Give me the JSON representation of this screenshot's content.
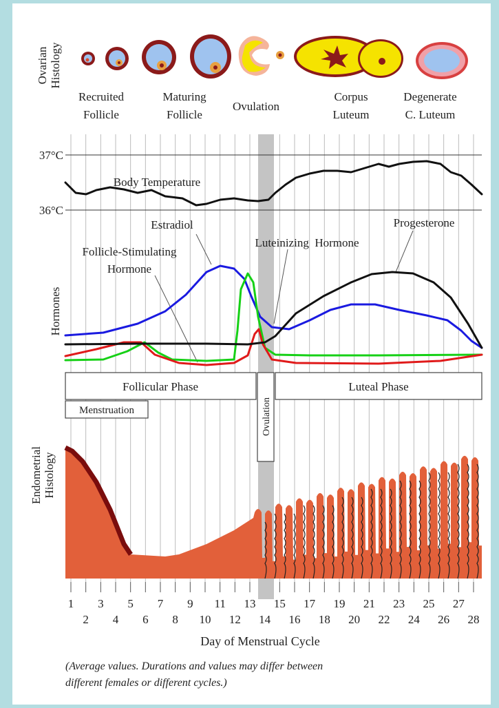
{
  "ovarian": {
    "axis_label": [
      "Ovarian",
      "Histology"
    ],
    "stages": [
      [
        "Recruited",
        "Follicle"
      ],
      [
        "Maturing",
        "Follicle"
      ],
      [
        "Ovulation"
      ],
      [
        "Corpus",
        "Luteum"
      ],
      [
        "Degenerate",
        "C. Luteum"
      ]
    ]
  },
  "temperature": {
    "label": "Body Temperature",
    "ticks": [
      "37°C",
      "36°C"
    ]
  },
  "hormones": {
    "axis_label": "Hormones",
    "estradiol": "Estradiol",
    "fsh": [
      "Follicle-Stimulating",
      "Hormone"
    ],
    "lh": "Luteinizing  Hormone",
    "progesterone": "Progesterone"
  },
  "phases": {
    "follicular": "Follicular Phase",
    "ovulation": "Ovulation",
    "luteal": "Luteal Phase",
    "menstruation": "Menstruation"
  },
  "endometrium": {
    "axis_label": [
      "Endometrial",
      "Histology"
    ]
  },
  "days": [
    1,
    2,
    3,
    4,
    5,
    6,
    7,
    8,
    9,
    10,
    11,
    12,
    13,
    14,
    15,
    16,
    17,
    18,
    19,
    20,
    21,
    22,
    23,
    24,
    25,
    26,
    27,
    28
  ],
  "x_label": "Day of Menstrual Cycle",
  "note": [
    "(Average values. Durations and values may differ between",
    "different females or different cycles.)"
  ]
}
